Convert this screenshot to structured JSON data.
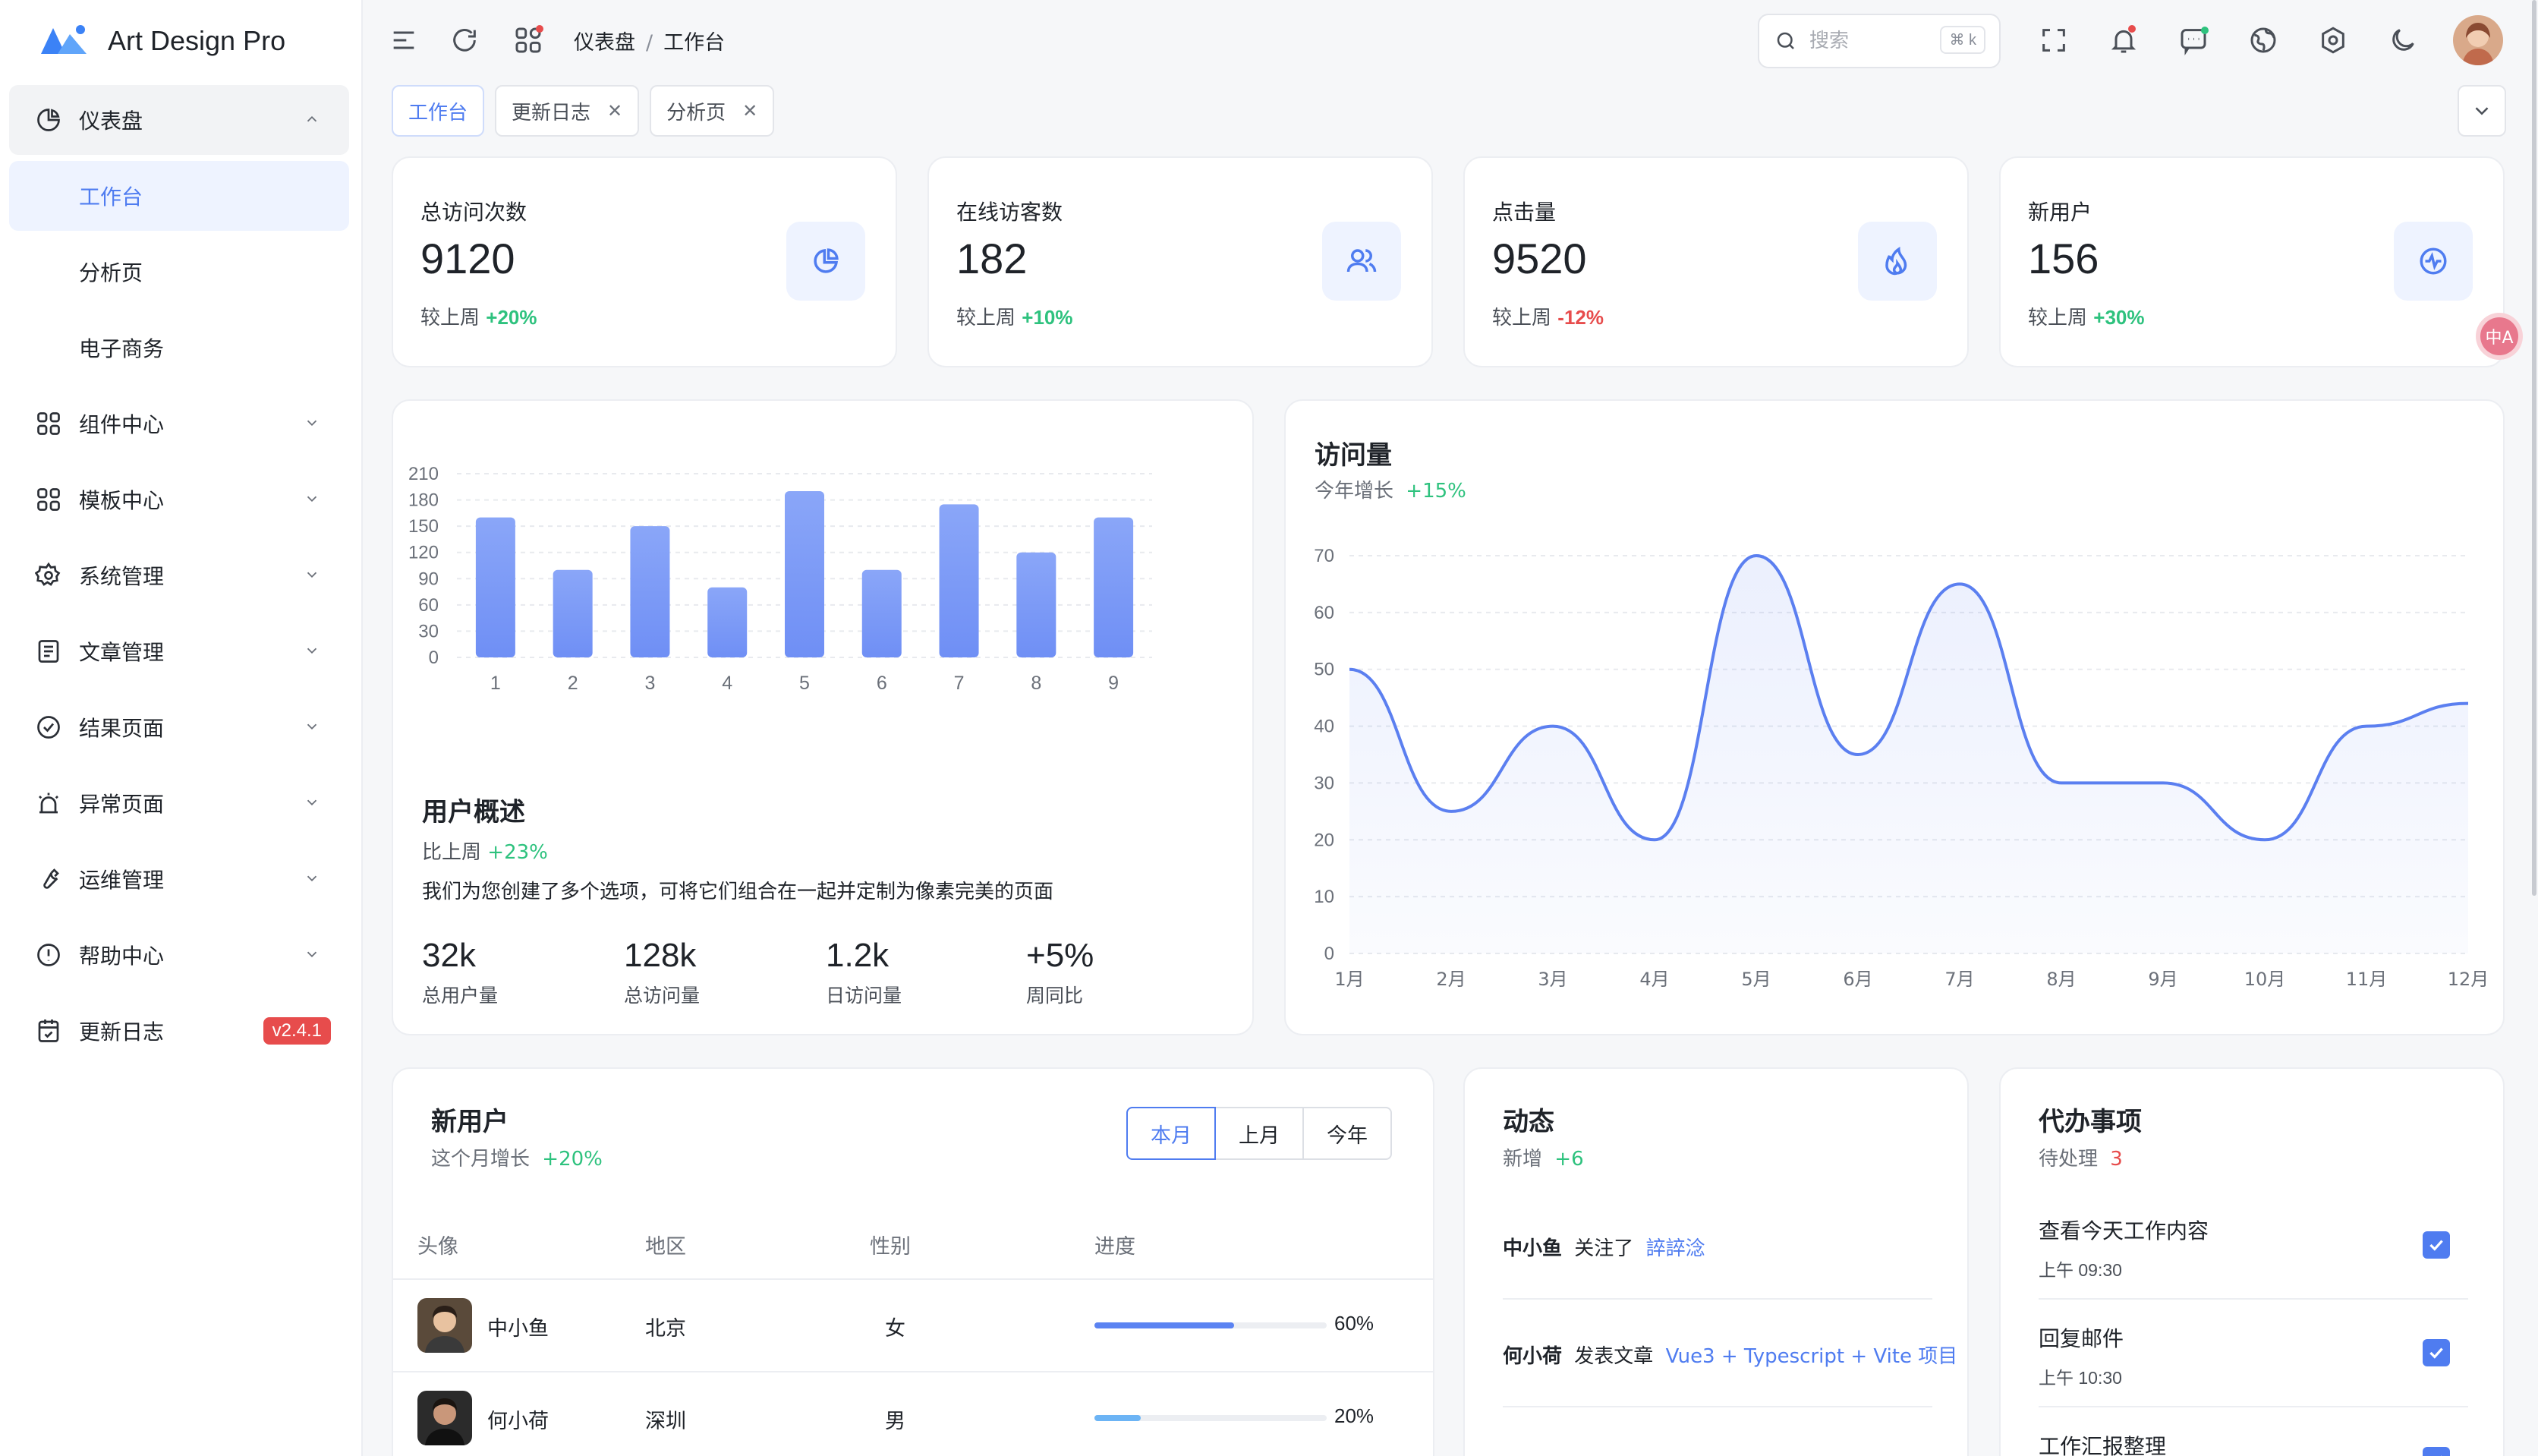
{
  "app": {
    "name": "Art Design Pro"
  },
  "sidebar": {
    "items": [
      {
        "label": "仪表盘",
        "icon": "pie-chart-icon",
        "expanded": true
      },
      {
        "label": "工作台",
        "sub": true,
        "active": true
      },
      {
        "label": "分析页",
        "sub": true
      },
      {
        "label": "电子商务",
        "sub": true
      },
      {
        "label": "组件中心",
        "icon": "grid-icon"
      },
      {
        "label": "模板中心",
        "icon": "grid-icon"
      },
      {
        "label": "系统管理",
        "icon": "gear-icon"
      },
      {
        "label": "文章管理",
        "icon": "article-icon"
      },
      {
        "label": "结果页面",
        "icon": "check-circle-icon"
      },
      {
        "label": "异常页面",
        "icon": "alarm-icon"
      },
      {
        "label": "运维管理",
        "icon": "wrench-icon"
      },
      {
        "label": "帮助中心",
        "icon": "info-circle-icon"
      },
      {
        "label": "更新日志",
        "icon": "calendar-check-icon",
        "badge": "v2.4.1"
      }
    ]
  },
  "header": {
    "breadcrumb": [
      "仪表盘",
      "工作台"
    ],
    "search_placeholder": "搜索",
    "search_shortcut": "⌘ k"
  },
  "tabs": [
    {
      "label": "工作台",
      "active": true,
      "closable": false
    },
    {
      "label": "更新日志",
      "closable": true
    },
    {
      "label": "分析页",
      "closable": true
    }
  ],
  "stats": [
    {
      "title": "总访问次数",
      "value": "9120",
      "compare": "较上周",
      "change": "+20%",
      "trend": "up",
      "icon": "pie-chart-icon"
    },
    {
      "title": "在线访客数",
      "value": "182",
      "compare": "较上周",
      "change": "+10%",
      "trend": "up",
      "icon": "users-icon"
    },
    {
      "title": "点击量",
      "value": "9520",
      "compare": "较上周",
      "change": "-12%",
      "trend": "down",
      "icon": "fire-icon"
    },
    {
      "title": "新用户",
      "value": "156",
      "compare": "较上周",
      "change": "+30%",
      "trend": "up",
      "icon": "activity-icon"
    }
  ],
  "translate_badge": "中A",
  "overview": {
    "title": "用户概述",
    "compare_label": "比上周",
    "compare_value": "+23%",
    "description": "我们为您创建了多个选项，可将它们组合在一起并定制为像素完美的页面",
    "stats": [
      {
        "value": "32k",
        "label": "总用户量"
      },
      {
        "value": "128k",
        "label": "总访问量"
      },
      {
        "value": "1.2k",
        "label": "日访问量"
      },
      {
        "value": "+5%",
        "label": "周同比"
      }
    ]
  },
  "visits": {
    "title": "访问量",
    "subtitle_label": "今年增长",
    "subtitle_value": "+15%"
  },
  "chart_data": [
    {
      "type": "bar",
      "categories": [
        "1",
        "2",
        "3",
        "4",
        "5",
        "6",
        "7",
        "8",
        "9"
      ],
      "values": [
        160,
        100,
        150,
        80,
        190,
        100,
        175,
        120,
        160
      ],
      "ylim": [
        0,
        210
      ],
      "yticks": [
        0,
        30,
        60,
        90,
        120,
        150,
        180,
        210
      ],
      "grid": true,
      "color": "#6f8ff5"
    },
    {
      "type": "area",
      "categories": [
        "1月",
        "2月",
        "3月",
        "4月",
        "5月",
        "6月",
        "7月",
        "8月",
        "9月",
        "10月",
        "11月",
        "12月"
      ],
      "values": [
        50,
        25,
        40,
        20,
        70,
        35,
        65,
        30,
        30,
        20,
        40,
        44
      ],
      "ylim": [
        0,
        70
      ],
      "yticks": [
        0,
        10,
        20,
        30,
        40,
        50,
        60,
        70
      ],
      "grid": true,
      "color": "#5b7ff0"
    }
  ],
  "new_users": {
    "title": "新用户",
    "subtitle_label": "这个月增长",
    "subtitle_value": "+20%",
    "segments": [
      "本月",
      "上月",
      "今年"
    ],
    "active_segment": 0,
    "columns": [
      "头像",
      "地区",
      "性别",
      "进度"
    ],
    "rows": [
      {
        "name": "中小鱼",
        "region": "北京",
        "gender": "女",
        "progress": 0.6,
        "progress_label": "60%"
      },
      {
        "name": "何小荷",
        "region": "深圳",
        "gender": "男",
        "progress": 0.2,
        "progress_label": "20%"
      }
    ]
  },
  "activity": {
    "title": "动态",
    "subtitle_label": "新增",
    "subtitle_value": "+6",
    "items": [
      {
        "name": "中小鱼",
        "action": "关注了",
        "target": "誶誶淰"
      },
      {
        "name": "何小荷",
        "action": "发表文章",
        "target": "Vue3 + Typescript + Vite 项目"
      }
    ]
  },
  "todo": {
    "title": "代办事项",
    "subtitle_label": "待处理",
    "subtitle_value": "3",
    "items": [
      {
        "title": "查看今天工作内容",
        "time": "上午 09:30",
        "done": true
      },
      {
        "title": "回复邮件",
        "time": "上午 10:30",
        "done": true
      },
      {
        "title": "工作汇报整理",
        "time": "",
        "done": true
      }
    ]
  },
  "colors": {
    "accent": "#4f7cf0",
    "up": "#2ec27e",
    "down": "#e74c4c",
    "badge": "#e74c4c"
  }
}
